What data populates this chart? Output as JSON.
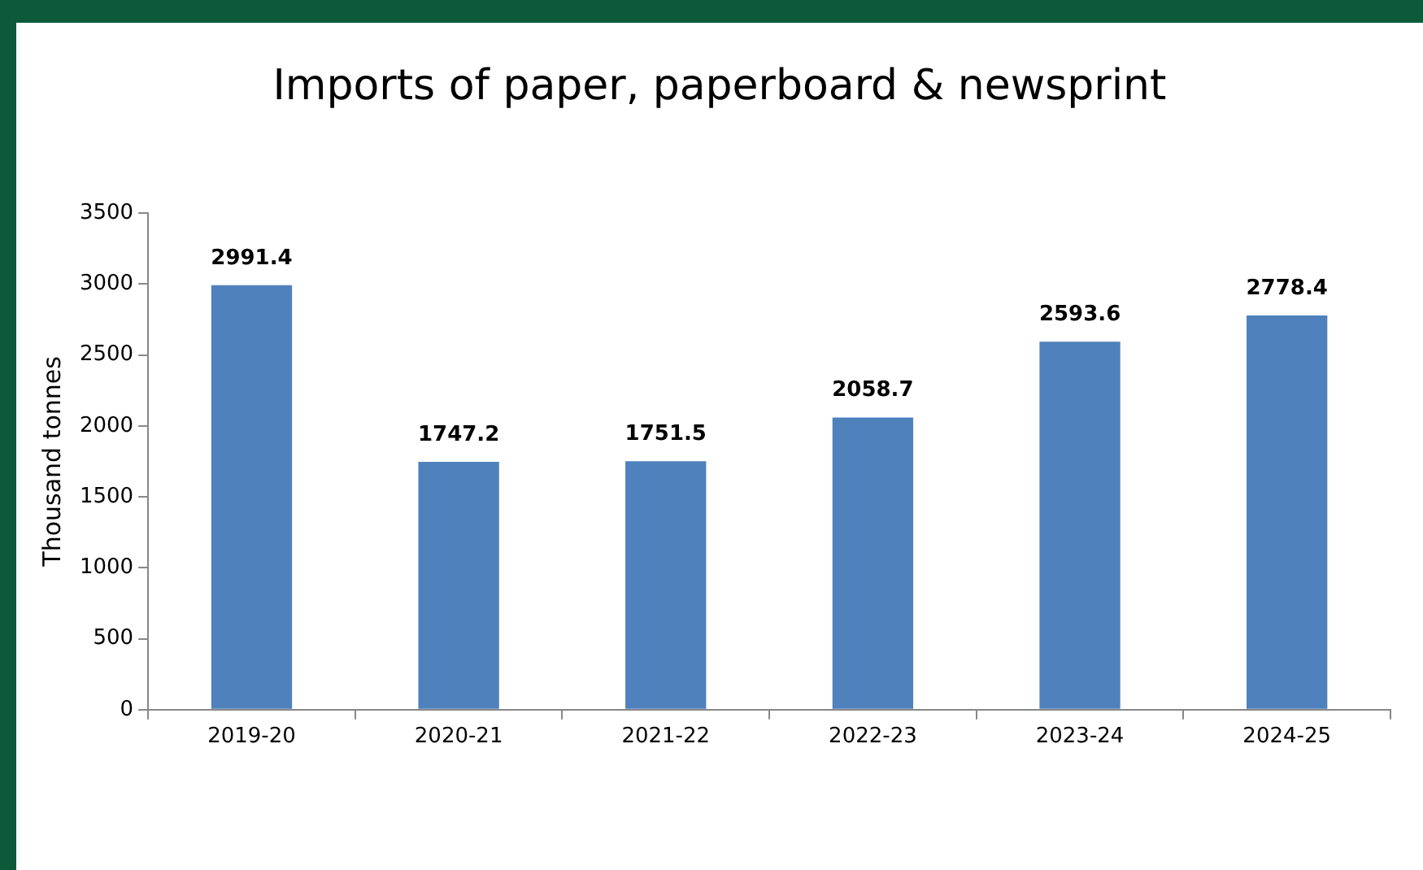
{
  "chart_data": {
    "type": "bar",
    "title": "Imports of paper, paperboard & newsprint",
    "ylabel": "Thousand tonnes",
    "categories": [
      "2019-20",
      "2020-21",
      "2021-22",
      "2022-23",
      "2023-24",
      "2024-25"
    ],
    "values": [
      2991.4,
      1747.2,
      1751.5,
      2058.7,
      2593.6,
      2778.4
    ],
    "color": "#4f81bd",
    "ylim": [
      0,
      3500
    ],
    "yticks": [
      0,
      500,
      1000,
      1500,
      2000,
      2500,
      3000,
      3500
    ],
    "grid": false,
    "legend": false,
    "data_labels": true
  }
}
